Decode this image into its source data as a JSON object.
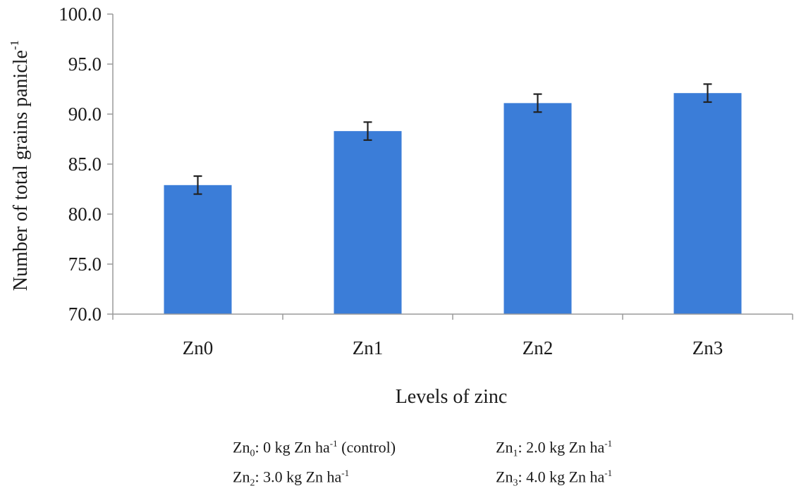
{
  "chart_data": {
    "type": "bar",
    "categories": [
      "Zn0",
      "Zn1",
      "Zn2",
      "Zn3"
    ],
    "values": [
      82.9,
      88.3,
      91.1,
      92.1
    ],
    "error": [
      0.9,
      0.9,
      0.9,
      0.9
    ],
    "xlabel": "Levels of zinc",
    "ylabel": "Number of total grains panicle",
    "ylabel_sup": "-1",
    "ylim": [
      70.0,
      100.0
    ],
    "yticks": [
      "100.0",
      "95.0",
      "90.0",
      "85.0",
      "80.0",
      "75.0",
      "70.0"
    ],
    "grid": false,
    "bar_color": "#3b7dd8"
  },
  "legend": [
    {
      "base": "Zn",
      "sub": "0",
      "text1": ": 0 kg Zn ha",
      "sup": "-1",
      "text2": " (control)"
    },
    {
      "base": "Zn",
      "sub": "1",
      "text1": ": 2.0 kg Zn ha",
      "sup": "-1",
      "text2": ""
    },
    {
      "base": "Zn",
      "sub": "2",
      "text1": ": 3.0 kg Zn ha",
      "sup": "-1",
      "text2": ""
    },
    {
      "base": "Zn",
      "sub": "3",
      "text1": ": 4.0 kg Zn ha",
      "sup": "-1",
      "text2": ""
    }
  ]
}
